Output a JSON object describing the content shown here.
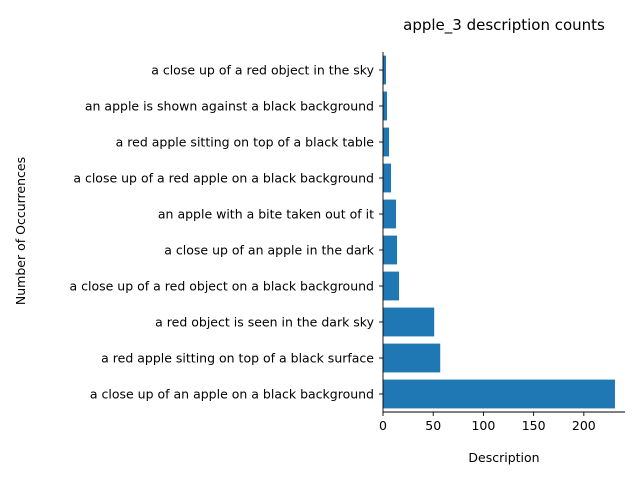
{
  "chart_data": {
    "type": "bar",
    "orientation": "horizontal",
    "title": "apple_3 description counts",
    "xlabel": "Description",
    "ylabel": "Number of Occurrences",
    "categories": [
      "a close up of an apple on a black background",
      "a red apple sitting on top of a black surface",
      "a red object is seen in the dark sky",
      "a close up of a red object on a black background",
      "a close up of an apple in the dark",
      "an apple with a bite taken out of it",
      "a close up of a red apple on a black background",
      "a red apple sitting on top of a black table",
      "an apple is shown against a black background",
      "a close up of a red object in the sky"
    ],
    "values": [
      231,
      57,
      51,
      16,
      14,
      13,
      8,
      6,
      4,
      3
    ],
    "xlim": [
      0,
      241
    ],
    "xticks": [
      0,
      50,
      100,
      150,
      200
    ],
    "bar_color": "#1f77b4",
    "grid": false,
    "legend": "none"
  }
}
